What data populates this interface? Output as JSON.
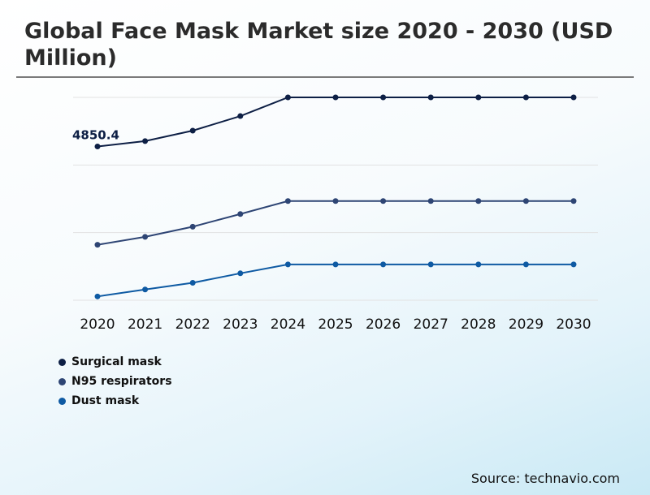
{
  "title": "Global Face Mask Market size 2020 - 2030 (USD Million)",
  "source": "Source: technavio.com",
  "chart_data": {
    "type": "line",
    "x": [
      "2020",
      "2021",
      "2022",
      "2023",
      "2024",
      "2025",
      "2026",
      "2027",
      "2028",
      "2029",
      "2030"
    ],
    "series": [
      {
        "name": "Surgical mask",
        "color": "#0d1f45",
        "values": [
          4850.4,
          5020,
          5350,
          5810,
          6400,
          6400,
          6400,
          6400,
          6400,
          6400,
          6400
        ]
      },
      {
        "name": "N95 respirators",
        "color": "#2e4574",
        "values": [
          1750,
          2000,
          2320,
          2720,
          3130,
          3130,
          3130,
          3130,
          3130,
          3130,
          3130
        ]
      },
      {
        "name": "Dust mask",
        "color": "#0e5aa3",
        "values": [
          120,
          340,
          550,
          850,
          1130,
          1130,
          1130,
          1130,
          1130,
          1130,
          1130
        ]
      }
    ],
    "data_labels": [
      {
        "series": "Surgical mask",
        "x": "2020",
        "text": "4850.4"
      }
    ],
    "ylim": [
      0,
      6400
    ],
    "grid": true,
    "legend": "bottom-left"
  }
}
